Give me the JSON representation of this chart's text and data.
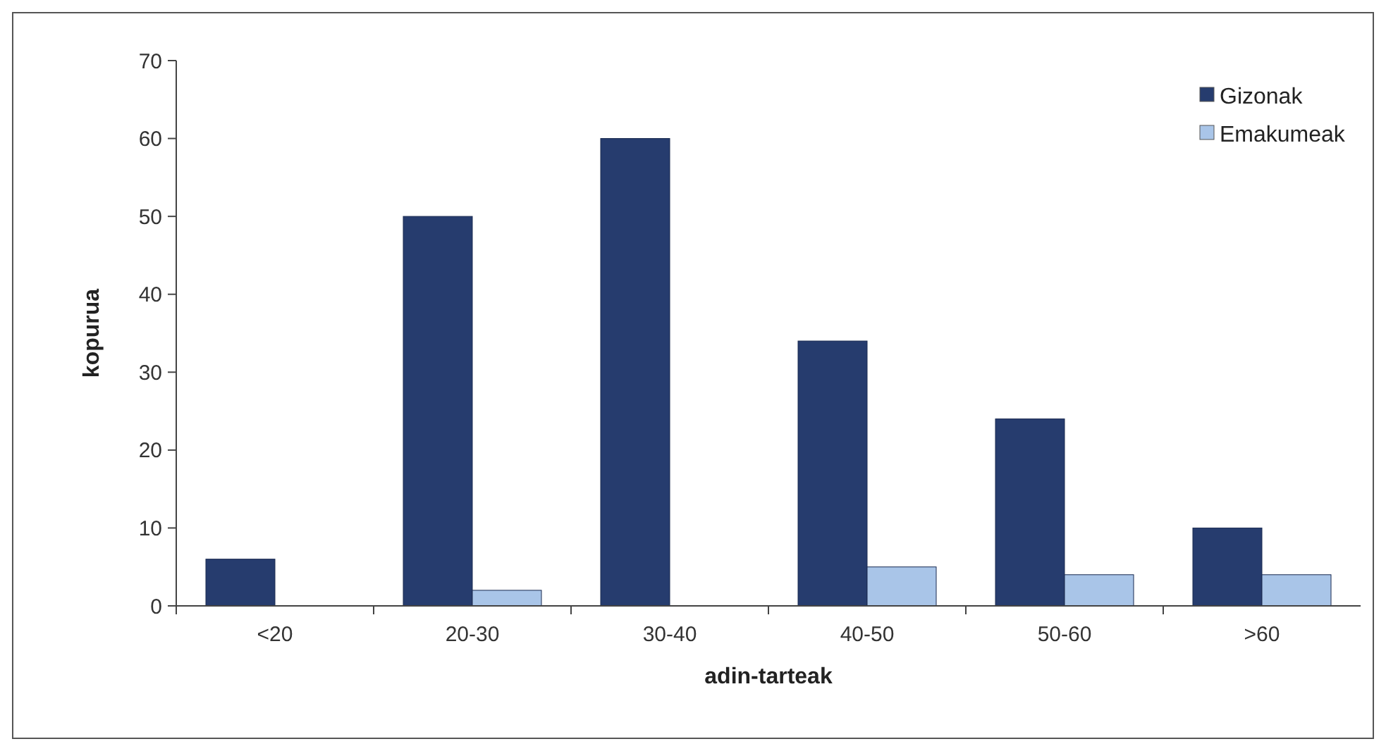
{
  "chart_data": {
    "type": "bar",
    "xlabel": "adin-tarteak",
    "ylabel": "kopurua",
    "categories": [
      "<20",
      "20-30",
      "30-40",
      "40-50",
      "50-60",
      ">60"
    ],
    "series": [
      {
        "name": "Gizonak",
        "color": "#263c6e",
        "values": [
          6,
          50,
          60,
          34,
          24,
          10
        ]
      },
      {
        "name": "Emakumeak",
        "color": "#a9c5e8",
        "values": [
          0,
          2,
          0,
          5,
          4,
          4
        ]
      }
    ],
    "ylim": [
      0,
      70
    ],
    "yticks": [
      0,
      10,
      20,
      30,
      40,
      50,
      60,
      70
    ],
    "grid": false,
    "legend": "top right"
  }
}
